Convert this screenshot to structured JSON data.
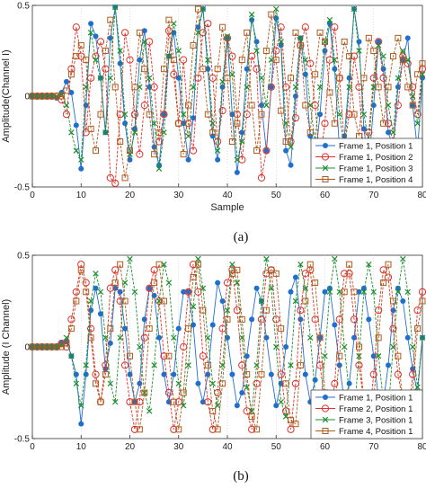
{
  "chart_data": [
    {
      "type": "line",
      "caption": "(a)",
      "xlabel": "Sample",
      "ylabel": "Amplitude(Channel I)",
      "xlim": [
        0,
        80
      ],
      "ylim": [
        -0.5,
        0.5
      ],
      "xticks": [
        "0",
        "10",
        "20",
        "30",
        "40",
        "50",
        "60",
        "70",
        "80"
      ],
      "yticks": [
        "-0.5",
        "0",
        "0.5"
      ],
      "grid": false,
      "legend_position": "bottom-right",
      "series": [
        {
          "name": "Frame 1, Position 1",
          "color": "#1f6fcf",
          "marker": "dot",
          "values": [
            0,
            0,
            0,
            0,
            0,
            -0.01,
            0.02,
            0.08,
            0.02,
            -0.16,
            -0.4,
            -0.05,
            0.4,
            0.33,
            0.1,
            -0.2,
            0.32,
            0.49,
            0.18,
            -0.15,
            -0.35,
            -0.18,
            0.2,
            0.36,
            0.05,
            -0.28,
            -0.38,
            -0.1,
            0.22,
            0.35,
            0.1,
            -0.15,
            -0.35,
            -0.12,
            0.38,
            0.48,
            0.15,
            -0.22,
            -0.35,
            0.05,
            0.32,
            -0.1,
            -0.42,
            -0.2,
            0.15,
            0.42,
            0.3,
            -0.05,
            -0.3,
            0.05,
            0.43,
            0.28,
            -0.3,
            -0.38,
            0.0,
            0.32,
            0.12,
            -0.22,
            -0.35,
            -0.1,
            0.25,
            0.4,
            0.15,
            -0.3,
            -0.22,
            0.1,
            0.48,
            0.3,
            -0.18,
            -0.38,
            -0.05,
            0.3,
            0.15,
            -0.2,
            -0.28,
            0.05,
            0.2,
            0.32,
            -0.05,
            -0.3,
            0.1
          ]
        },
        {
          "name": "Frame 1, Position 2",
          "color": "#e0302a",
          "marker": "circle",
          "values": [
            0,
            0,
            0,
            0,
            0,
            0,
            -0.02,
            -0.1,
            0.15,
            0.38,
            0.22,
            -0.2,
            0.1,
            0.22,
            0.3,
            0.15,
            -0.45,
            -0.48,
            -0.1,
            0.35,
            0.2,
            -0.1,
            -0.32,
            -0.05,
            0.3,
            0.05,
            -0.25,
            -0.1,
            0.36,
            0.12,
            -0.15,
            0.2,
            -0.15,
            -0.3,
            0.1,
            0.35,
            0.4,
            0.1,
            -0.25,
            -0.08,
            0.32,
            0.22,
            -0.1,
            -0.35,
            -0.1,
            0.22,
            0.15,
            -0.45,
            -0.3,
            0.05,
            0.25,
            0.38,
            0.05,
            -0.25,
            -0.12,
            0.28,
            0.38,
            0.18,
            -0.05,
            -0.35,
            -0.15,
            0.2,
            0.38,
            0.1,
            -0.28,
            -0.1,
            0.22,
            0.05,
            -0.35,
            -0.2,
            0.1,
            0.3,
            0.1,
            -0.15,
            -0.25,
            -0.05,
            0.22,
            0.18,
            0.05,
            -0.1,
            0.15
          ]
        },
        {
          "name": "Frame 1, Position 3",
          "color": "#1e8f2e",
          "marker": "x",
          "values": [
            0,
            0,
            0,
            0,
            0,
            0,
            0.01,
            -0.05,
            -0.2,
            -0.3,
            -0.35,
            0.05,
            0.35,
            0.2,
            0.1,
            -0.2,
            0.1,
            0.49,
            0.25,
            -0.1,
            -0.32,
            -0.2,
            0.05,
            0.3,
            0.1,
            -0.15,
            -0.4,
            -0.2,
            0.22,
            0.4,
            0.25,
            -0.1,
            -0.22,
            0.05,
            0.35,
            0.48,
            0.2,
            -0.15,
            -0.3,
            0.08,
            0.33,
            0.12,
            -0.35,
            -0.25,
            0.05,
            0.45,
            0.25,
            0.1,
            -0.05,
            0.2,
            0.48,
            0.3,
            -0.15,
            -0.28,
            0.05,
            0.32,
            0.2,
            -0.05,
            -0.25,
            0.05,
            0.3,
            0.42,
            0.2,
            -0.1,
            -0.3,
            0.05,
            0.48,
            0.25,
            -0.1,
            -0.25,
            0.05,
            0.28,
            0.22,
            -0.05,
            -0.2,
            0.1,
            0.25,
            0.2,
            0.0,
            -0.15,
            0.12
          ]
        },
        {
          "name": "Frame 1, Position 4",
          "color": "#b05a1e",
          "marker": "square",
          "values": [
            0,
            0,
            0,
            0,
            0,
            0,
            0,
            0.03,
            0.12,
            0.22,
            0.28,
            0.2,
            -0.18,
            -0.3,
            -0.1,
            0.25,
            0.42,
            0.05,
            -0.25,
            -0.45,
            -0.3,
            0.05,
            0.35,
            0.15,
            -0.1,
            -0.32,
            -0.2,
            0.15,
            0.42,
            0.2,
            -0.15,
            -0.32,
            -0.05,
            0.28,
            0.48,
            0.15,
            -0.1,
            -0.2,
            0.15,
            0.38,
            0.1,
            -0.25,
            -0.15,
            0.2,
            0.35,
            -0.05,
            -0.3,
            -0.1,
            0.25,
            0.45,
            0.2,
            -0.08,
            -0.25,
            0.1,
            0.35,
            0.28,
            -0.05,
            -0.2,
            0.12,
            0.35,
            0.3,
            0.02,
            -0.15,
            0.1,
            0.3,
            0.22,
            -0.1,
            -0.22,
            0.1,
            0.32,
            0.25,
            0.05,
            -0.15,
            0.05,
            0.22,
            0.32,
            0.2,
            0.05,
            -0.05,
            0.12,
            0.18
          ]
        }
      ]
    },
    {
      "type": "line",
      "caption": "(b)",
      "xlabel": "",
      "ylabel": "Amplitude (I Channel)",
      "xlim": [
        0,
        80
      ],
      "ylim": [
        -0.5,
        0.5
      ],
      "xticks": [
        "0",
        "10",
        "20",
        "30",
        "40",
        "50",
        "60",
        "70",
        "80"
      ],
      "yticks": [
        "-0.5",
        "0",
        "0.5"
      ],
      "grid": false,
      "legend_position": "bottom-right",
      "series": [
        {
          "name": "Frame 1, Position 1",
          "color": "#1f6fcf",
          "marker": "dot",
          "values": [
            0,
            0,
            0,
            0,
            0,
            0,
            0.02,
            0.03,
            -0.05,
            -0.15,
            -0.42,
            -0.15,
            0.2,
            0.32,
            0.18,
            -0.12,
            0.02,
            0.32,
            0.3,
            0.1,
            -0.15,
            -0.3,
            -0.2,
            0.15,
            0.32,
            0.28,
            0.05,
            -0.15,
            -0.3,
            -0.15,
            0.1,
            0.3,
            0.3,
            0.12,
            -0.2,
            -0.3,
            -0.15,
            0.12,
            0.35,
            0.25,
            0.05,
            -0.15,
            -0.32,
            -0.25,
            -0.05,
            0.15,
            0.32,
            0.25,
            0.05,
            -0.15,
            -0.32,
            -0.2,
            0.0,
            0.3,
            0.38,
            0.15,
            -0.15,
            -0.3,
            -0.18,
            0.05,
            0.3,
            0.32,
            0.12,
            -0.1,
            -0.3,
            -0.2,
            0.05,
            0.3,
            0.32,
            0.15,
            -0.05,
            -0.28,
            -0.3,
            -0.1,
            0.2,
            0.32,
            0.25,
            0.05,
            -0.12,
            -0.25,
            0.05
          ]
        },
        {
          "name": "Frame 2, Position 1",
          "color": "#e0302a",
          "marker": "circle",
          "values": [
            0,
            0,
            0,
            0,
            0,
            0,
            0.02,
            0.0,
            0.15,
            0.3,
            0.45,
            0.35,
            0.1,
            -0.15,
            -0.3,
            -0.1,
            0.32,
            0.42,
            0.25,
            -0.1,
            -0.3,
            -0.45,
            -0.3,
            0.05,
            0.32,
            0.42,
            0.25,
            -0.05,
            -0.25,
            -0.45,
            -0.3,
            0.0,
            0.3,
            0.45,
            0.3,
            -0.05,
            -0.3,
            -0.45,
            -0.25,
            0.1,
            0.35,
            0.42,
            0.2,
            -0.1,
            -0.35,
            -0.45,
            -0.2,
            0.15,
            0.4,
            0.42,
            0.15,
            -0.15,
            -0.35,
            -0.45,
            -0.2,
            0.2,
            0.4,
            0.42,
            0.15,
            -0.1,
            -0.3,
            -0.45,
            -0.2,
            0.15,
            0.4,
            0.4,
            0.15,
            -0.1,
            -0.3,
            -0.42,
            -0.15,
            0.2,
            0.42,
            0.38,
            0.1,
            -0.15,
            -0.3,
            -0.42,
            -0.15,
            0.2,
            0.3
          ]
        },
        {
          "name": "Frame 3, Position 1",
          "color": "#1e8f2e",
          "marker": "x",
          "values": [
            0,
            0,
            0,
            0,
            0,
            0,
            0.01,
            0.05,
            -0.05,
            -0.2,
            -0.32,
            -0.1,
            0.25,
            0.4,
            0.3,
            0.05,
            -0.2,
            -0.3,
            0.05,
            0.35,
            0.48,
            0.3,
            0.0,
            -0.25,
            -0.35,
            -0.1,
            0.25,
            0.45,
            0.35,
            0.05,
            -0.2,
            -0.32,
            -0.1,
            0.22,
            0.48,
            0.32,
            0.05,
            -0.2,
            -0.32,
            -0.1,
            0.2,
            0.45,
            0.35,
            0.05,
            -0.22,
            -0.35,
            -0.1,
            0.25,
            0.48,
            0.32,
            0.0,
            -0.3,
            -0.38,
            -0.1,
            0.25,
            0.45,
            0.32,
            0.05,
            -0.25,
            -0.35,
            -0.05,
            0.3,
            0.48,
            0.3,
            0.0,
            -0.25,
            -0.35,
            -0.05,
            0.3,
            0.45,
            0.3,
            -0.05,
            -0.3,
            -0.35,
            0.0,
            0.3,
            0.48,
            0.3,
            0.0,
            -0.22,
            0.05
          ]
        },
        {
          "name": "Frame 4, Position 1",
          "color": "#b05a1e",
          "marker": "square",
          "values": [
            0,
            0,
            0,
            0,
            0,
            0,
            0,
            0.02,
            0.1,
            0.25,
            0.42,
            0.3,
            0.05,
            -0.2,
            -0.3,
            -0.15,
            0.1,
            0.35,
            0.45,
            0.25,
            -0.05,
            -0.3,
            -0.45,
            -0.25,
            0.1,
            0.35,
            0.45,
            0.25,
            -0.05,
            -0.3,
            -0.45,
            -0.25,
            0.1,
            0.38,
            0.45,
            0.2,
            -0.1,
            -0.35,
            -0.45,
            -0.2,
            0.15,
            0.4,
            0.42,
            0.15,
            -0.15,
            -0.38,
            -0.45,
            -0.15,
            0.2,
            0.42,
            0.4,
            0.1,
            -0.2,
            -0.4,
            -0.42,
            -0.1,
            0.25,
            0.45,
            0.35,
            0.05,
            -0.25,
            -0.42,
            -0.35,
            -0.05,
            0.3,
            0.45,
            0.3,
            0.0,
            -0.3,
            -0.42,
            -0.3,
            0.05,
            0.35,
            0.45,
            0.25,
            -0.05,
            -0.3,
            -0.42,
            -0.25,
            0.1,
            0.25
          ]
        }
      ]
    }
  ]
}
